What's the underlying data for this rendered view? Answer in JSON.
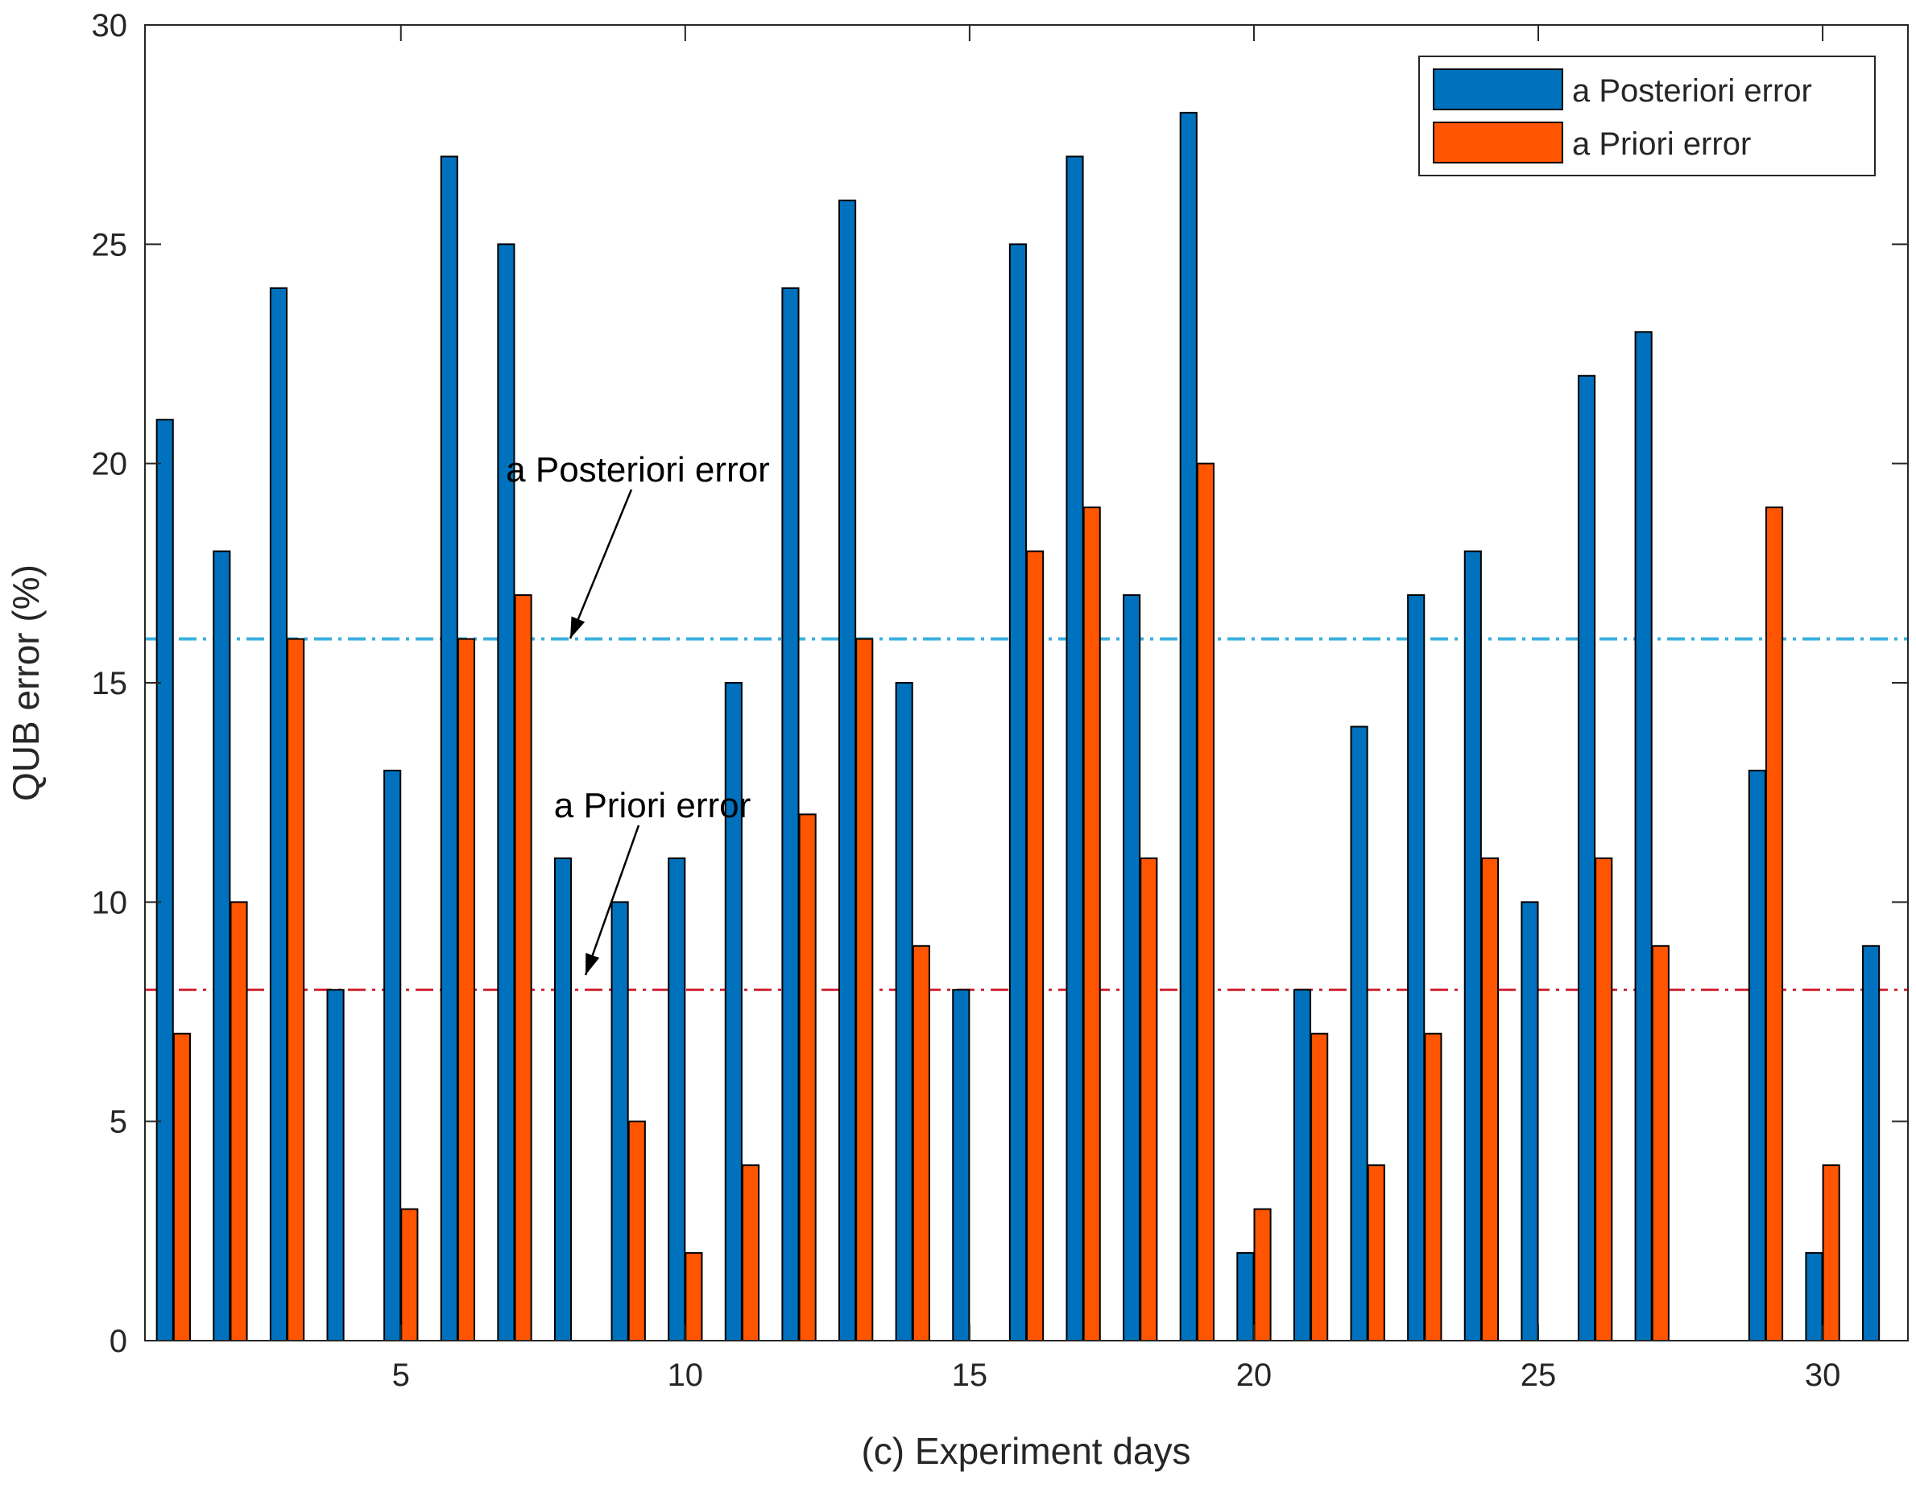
{
  "chart_data": {
    "type": "bar",
    "xlabel": "(c) Experiment days",
    "ylabel": "QUB error (%)",
    "xlim": [
      0.5,
      31.5
    ],
    "ylim": [
      0,
      30
    ],
    "x": [
      1,
      2,
      3,
      4,
      5,
      6,
      7,
      8,
      9,
      10,
      11,
      12,
      13,
      14,
      15,
      16,
      17,
      18,
      19,
      20,
      21,
      22,
      23,
      24,
      25,
      26,
      27,
      28,
      29,
      30,
      31
    ],
    "xticks": [
      5,
      10,
      15,
      20,
      25,
      30
    ],
    "yticks": [
      0,
      5,
      10,
      15,
      20,
      25,
      30
    ],
    "series": [
      {
        "name": "a Posteriori error",
        "color": "#0072BD",
        "values": [
          21,
          18,
          24,
          8,
          13,
          27,
          25,
          11,
          10,
          11,
          15,
          24,
          26,
          15,
          8,
          25,
          27,
          17,
          28,
          2,
          8,
          14,
          17,
          18,
          10,
          22,
          23,
          0,
          13,
          2,
          9
        ]
      },
      {
        "name": "a Priori error",
        "color": "#FF5500",
        "values": [
          7,
          10,
          16,
          0,
          3,
          16,
          17,
          0,
          5,
          2,
          4,
          12,
          16,
          9,
          0,
          18,
          19,
          11,
          20,
          3,
          7,
          4,
          7,
          11,
          0,
          11,
          9,
          0,
          19,
          4,
          0
        ]
      }
    ],
    "reference_lines": [
      {
        "name": "a Posteriori error",
        "y": 16,
        "color": "#3BB0E0",
        "style": "dash-dot"
      },
      {
        "name": "a Priori error",
        "y": 8,
        "color": "#D0202E",
        "style": "dash-dot"
      }
    ],
    "annotations": [
      {
        "text": "a Posteriori error",
        "points_to_x": 8,
        "points_to_y": 16
      },
      {
        "text": "a Priori error",
        "points_to_x": 8,
        "points_to_y": 8
      }
    ],
    "legend": {
      "position": "top-right",
      "entries": [
        "a Posteriori error",
        "a Priori error"
      ]
    }
  }
}
